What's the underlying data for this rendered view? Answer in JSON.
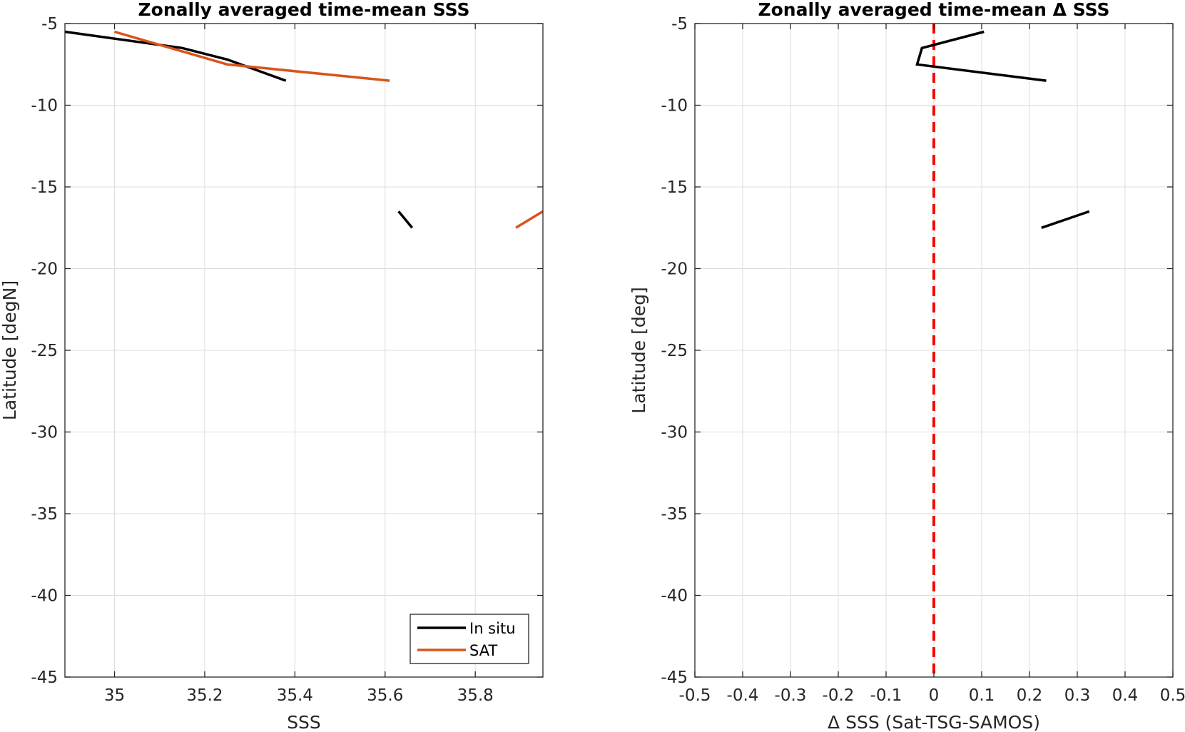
{
  "chart_data": [
    {
      "type": "line",
      "title": "Zonally averaged time-mean SSS",
      "xlabel": "SSS",
      "ylabel": "Latitude [degN]",
      "xlim": [
        34.89,
        35.95
      ],
      "ylim": [
        -45,
        -5
      ],
      "xticks": [
        35,
        35.2,
        35.4,
        35.6,
        35.8
      ],
      "xtick_labels": [
        "35",
        "35.2",
        "35.4",
        "35.6",
        "35.8"
      ],
      "yticks": [
        -5,
        -10,
        -15,
        -20,
        -25,
        -30,
        -35,
        -40,
        -45
      ],
      "ytick_labels": [
        "-5",
        "-10",
        "-15",
        "-20",
        "-25",
        "-30",
        "-35",
        "-40",
        "-45"
      ],
      "grid": true,
      "legend_position": "bottom-right",
      "series": [
        {
          "name": "In situ",
          "color": "#000000",
          "segments": [
            [
              [
                34.89,
                -5.5
              ],
              [
                35.15,
                -6.5
              ],
              [
                35.25,
                -7.2
              ],
              [
                35.38,
                -8.5
              ]
            ],
            [
              [
                35.63,
                -16.5
              ],
              [
                35.66,
                -17.5
              ]
            ]
          ]
        },
        {
          "name": "SAT",
          "color": "#D95319",
          "segments": [
            [
              [
                35.0,
                -5.5
              ],
              [
                35.25,
                -7.5
              ],
              [
                35.61,
                -8.5
              ]
            ],
            [
              [
                35.89,
                -17.5
              ],
              [
                35.95,
                -16.5
              ]
            ]
          ]
        }
      ]
    },
    {
      "type": "line",
      "title": "Zonally averaged time-mean Δ SSS",
      "xlabel": "Δ SSS (Sat-TSG-SAMOS)",
      "ylabel": "Latitude [deg]",
      "xlim": [
        -0.5,
        0.5
      ],
      "ylim": [
        -45,
        -5
      ],
      "xticks": [
        -0.5,
        -0.4,
        -0.3,
        -0.2,
        -0.1,
        0,
        0.1,
        0.2,
        0.3,
        0.4,
        0.5
      ],
      "xtick_labels": [
        "-0.5",
        "-0.4",
        "-0.3",
        "-0.2",
        "-0.1",
        "0",
        "0.1",
        "0.2",
        "0.3",
        "0.4",
        "0.5"
      ],
      "yticks": [
        -5,
        -10,
        -15,
        -20,
        -25,
        -30,
        -35,
        -40,
        -45
      ],
      "ytick_labels": [
        "-5",
        "-10",
        "-15",
        "-20",
        "-25",
        "-30",
        "-35",
        "-40",
        "-45"
      ],
      "grid": true,
      "reference_line": {
        "x": 0,
        "color": "#FF0000",
        "style": "dashed"
      },
      "series": [
        {
          "color": "#000000",
          "segments": [
            [
              [
                0.105,
                -5.5
              ],
              [
                -0.025,
                -6.5
              ],
              [
                -0.035,
                -7.5
              ],
              [
                0.235,
                -8.5
              ]
            ],
            [
              [
                0.225,
                -17.5
              ],
              [
                0.325,
                -16.5
              ]
            ]
          ]
        }
      ]
    }
  ]
}
